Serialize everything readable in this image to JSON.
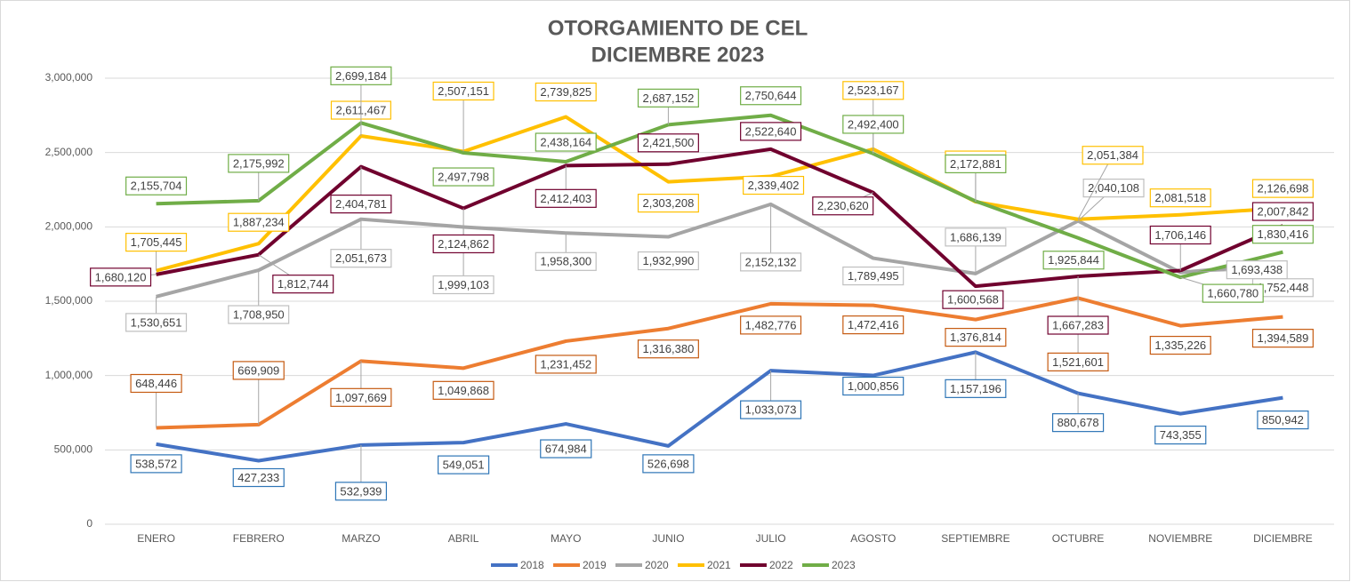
{
  "chart_data": {
    "type": "line",
    "title": "OTORGAMIENTO DE CEL",
    "subtitle": "DICIEMBRE 2023",
    "categories": [
      "ENERO",
      "FEBRERO",
      "MARZO",
      "ABRIL",
      "MAYO",
      "JUNIO",
      "JULIO",
      "AGOSTO",
      "SEPTIEMBRE",
      "OCTUBRE",
      "NOVIEMBRE",
      "DICIEMBRE"
    ],
    "ylim": [
      0,
      3000000
    ],
    "yticks": [
      0,
      {
        "value": 500000,
        "label": "500,000"
      },
      {
        "value": 1000000,
        "label": "1,000,000"
      },
      {
        "value": 1500000,
        "label": "1,500,000"
      },
      {
        "value": 2000000,
        "label": "2,000,000"
      },
      {
        "value": 2500000,
        "label": "2,500,000"
      },
      {
        "value": 3000000,
        "label": "3,000,000"
      }
    ],
    "grid": true,
    "legend": "bottom",
    "series": [
      {
        "name": "2018",
        "color": "#4472c4",
        "label_border": "#2e75b6",
        "values": [
          538572,
          427233,
          532939,
          549051,
          674984,
          526698,
          1033073,
          1000856,
          1157196,
          880678,
          743355,
          850942
        ],
        "value_labels": [
          "538,572",
          "427,233",
          "532,939",
          "549,051",
          "674,984",
          "526,698",
          "1,033,073",
          "1,000,856",
          "1,157,196",
          "880,678",
          "743,355",
          "850,942"
        ]
      },
      {
        "name": "2019",
        "color": "#ed7d31",
        "label_border": "#c55a11",
        "values": [
          648446,
          669909,
          1097669,
          1049868,
          1231452,
          1316380,
          1482776,
          1472416,
          1376814,
          1521601,
          1335226,
          1394589
        ],
        "value_labels": [
          "648,446",
          "669,909",
          "1,097,669",
          "1,049,868",
          "1,231,452",
          "1,316,380",
          "1,482,776",
          "1,472,416",
          "1,376,814",
          "1,521,601",
          "1,335,226",
          "1,394,589"
        ]
      },
      {
        "name": "2020",
        "color": "#a5a5a5",
        "label_border": "#bfbfbf",
        "values": [
          1530651,
          1708950,
          2051673,
          1999103,
          1958300,
          1932990,
          2152132,
          1789495,
          1686139,
          2040108,
          1693438,
          1752448
        ],
        "value_labels": [
          "1,530,651",
          "1,708,950",
          "2,051,673",
          "1,999,103",
          "1,958,300",
          "1,932,990",
          "2,152,132",
          "1,789,495",
          "1,686,139",
          "2,040,108",
          "1,693,438",
          "1,752,448"
        ]
      },
      {
        "name": "2021",
        "color": "#ffc000",
        "label_border": "#ffc000",
        "values": [
          1705445,
          1887234,
          2611467,
          2507151,
          2739825,
          2303208,
          2339402,
          2523167,
          2169083,
          2051384,
          2081518,
          2126698
        ],
        "value_labels": [
          "1,705,445",
          "1,887,234",
          "2,611,467",
          "2,507,151",
          "2,739,825",
          "2,303,208",
          "2,339,402",
          "2,523,167",
          "2,169,083",
          "2,051,384",
          "2,081,518",
          "2,126,698"
        ]
      },
      {
        "name": "2022",
        "color": "#70002e",
        "label_border": "#70002e",
        "values": [
          1680120,
          1812744,
          2404781,
          2124862,
          2412403,
          2421500,
          2522640,
          2230620,
          1600568,
          1667283,
          1706146,
          2007842
        ],
        "value_labels": [
          "1,680,120",
          "1,812,744",
          "2,404,781",
          "2,124,862",
          "2,412,403",
          "2,421,500",
          "2,522,640",
          "2,230,620",
          "1,600,568",
          "1,667,283",
          "1,706,146",
          "2,007,842"
        ]
      },
      {
        "name": "2023",
        "color": "#70ad47",
        "label_border": "#70ad47",
        "values": [
          2155704,
          2175992,
          2699184,
          2497798,
          2438164,
          2687152,
          2750644,
          2492400,
          2172881,
          1925844,
          1660780,
          1830416
        ],
        "value_labels": [
          "2,155,704",
          "2,175,992",
          "2,699,184",
          "2,497,798",
          "2,438,164",
          "2,687,152",
          "2,750,644",
          "2,492,400",
          "2,172,881",
          "1,925,844",
          "1,660,780",
          "1,830,416"
        ]
      }
    ]
  }
}
